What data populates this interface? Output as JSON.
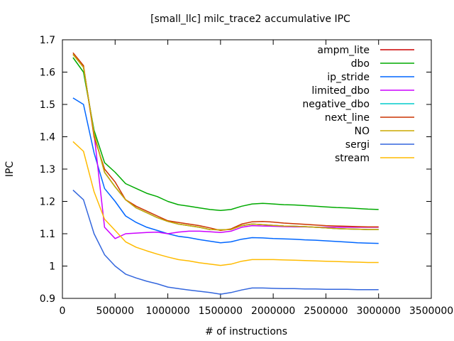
{
  "chart_data": {
    "type": "line",
    "title": "[small_llc] milc_trace2 accumulative IPC",
    "xlabel": "# of instructions",
    "ylabel": "IPC",
    "xlim": [
      0,
      3500000
    ],
    "ylim": [
      0.9,
      1.7
    ],
    "xticks": [
      0,
      500000,
      1000000,
      1500000,
      2000000,
      2500000,
      3000000,
      3500000
    ],
    "xtick_labels": [
      "0",
      "500000",
      "1000000",
      "1500000",
      "2000000",
      "2500000",
      "3000000",
      "3500000"
    ],
    "yticks": [
      0.9,
      1,
      1.1,
      1.2,
      1.3,
      1.4,
      1.5,
      1.6,
      1.7
    ],
    "ytick_labels": [
      "0.9",
      "1",
      "1.1",
      "1.2",
      "1.3",
      "1.4",
      "1.5",
      "1.6",
      "1.7"
    ],
    "grid": false,
    "legend_position": "top-right",
    "x": [
      100000,
      200000,
      300000,
      400000,
      500000,
      600000,
      700000,
      800000,
      900000,
      1000000,
      1100000,
      1200000,
      1300000,
      1400000,
      1500000,
      1600000,
      1700000,
      1800000,
      1900000,
      2000000,
      2100000,
      2200000,
      2300000,
      2400000,
      2500000,
      2600000,
      2700000,
      2800000,
      2900000,
      3000000
    ],
    "series": [
      {
        "name": "ampm_lite",
        "color": "#cc0000",
        "values": [
          1.655,
          1.615,
          1.41,
          1.29,
          1.245,
          1.205,
          1.18,
          1.165,
          1.15,
          1.138,
          1.13,
          1.125,
          1.12,
          1.113,
          1.112,
          1.113,
          1.125,
          1.13,
          1.128,
          1.126,
          1.124,
          1.123,
          1.122,
          1.12,
          1.118,
          1.116,
          1.115,
          1.114,
          1.113,
          1.113
        ]
      },
      {
        "name": "dbo",
        "color": "#00aa00",
        "values": [
          1.645,
          1.6,
          1.42,
          1.32,
          1.29,
          1.255,
          1.24,
          1.225,
          1.215,
          1.2,
          1.19,
          1.185,
          1.18,
          1.175,
          1.172,
          1.175,
          1.185,
          1.192,
          1.194,
          1.192,
          1.19,
          1.189,
          1.187,
          1.185,
          1.183,
          1.181,
          1.18,
          1.178,
          1.176,
          1.175
        ]
      },
      {
        "name": "ip_stride",
        "color": "#0066ff",
        "values": [
          1.52,
          1.5,
          1.35,
          1.24,
          1.2,
          1.155,
          1.135,
          1.12,
          1.11,
          1.1,
          1.092,
          1.088,
          1.082,
          1.077,
          1.072,
          1.075,
          1.083,
          1.088,
          1.087,
          1.085,
          1.084,
          1.083,
          1.081,
          1.08,
          1.078,
          1.076,
          1.074,
          1.072,
          1.071,
          1.07
        ]
      },
      {
        "name": "limited_dbo",
        "color": "#cc00ff",
        "values": [
          1.655,
          1.615,
          1.41,
          1.12,
          1.085,
          1.1,
          1.102,
          1.104,
          1.105,
          1.1,
          1.105,
          1.108,
          1.108,
          1.106,
          1.104,
          1.108,
          1.12,
          1.125,
          1.124,
          1.123,
          1.122,
          1.121,
          1.121,
          1.12,
          1.12,
          1.12,
          1.12,
          1.12,
          1.12,
          1.12
        ]
      },
      {
        "name": "negative_dbo",
        "color": "#00cccc",
        "values": [
          1.655,
          1.615,
          1.41,
          1.29,
          1.245,
          1.205,
          1.18,
          1.165,
          1.15,
          1.138,
          1.13,
          1.125,
          1.12,
          1.113,
          1.112,
          1.113,
          1.125,
          1.13,
          1.128,
          1.126,
          1.124,
          1.123,
          1.122,
          1.12,
          1.118,
          1.116,
          1.115,
          1.114,
          1.113,
          1.113
        ]
      },
      {
        "name": "next_line",
        "color": "#cc3300",
        "values": [
          1.66,
          1.62,
          1.4,
          1.3,
          1.26,
          1.205,
          1.185,
          1.17,
          1.155,
          1.14,
          1.135,
          1.13,
          1.125,
          1.118,
          1.11,
          1.115,
          1.13,
          1.137,
          1.138,
          1.136,
          1.133,
          1.131,
          1.129,
          1.127,
          1.125,
          1.124,
          1.123,
          1.122,
          1.121,
          1.121
        ]
      },
      {
        "name": "NO",
        "color": "#ccaa00",
        "values": [
          1.655,
          1.615,
          1.41,
          1.29,
          1.245,
          1.205,
          1.18,
          1.165,
          1.15,
          1.138,
          1.13,
          1.125,
          1.12,
          1.113,
          1.112,
          1.113,
          1.125,
          1.13,
          1.128,
          1.126,
          1.124,
          1.123,
          1.122,
          1.12,
          1.118,
          1.116,
          1.115,
          1.114,
          1.113,
          1.113
        ]
      },
      {
        "name": "sergi",
        "color": "#3366dd",
        "values": [
          1.235,
          1.205,
          1.1,
          1.035,
          1.0,
          0.975,
          0.963,
          0.953,
          0.945,
          0.935,
          0.93,
          0.926,
          0.922,
          0.918,
          0.913,
          0.918,
          0.926,
          0.932,
          0.932,
          0.931,
          0.93,
          0.93,
          0.929,
          0.929,
          0.928,
          0.928,
          0.928,
          0.927,
          0.927,
          0.927
        ]
      },
      {
        "name": "stream",
        "color": "#ffbb00",
        "values": [
          1.385,
          1.355,
          1.23,
          1.145,
          1.11,
          1.075,
          1.058,
          1.047,
          1.037,
          1.028,
          1.02,
          1.016,
          1.01,
          1.006,
          1.002,
          1.006,
          1.015,
          1.02,
          1.02,
          1.02,
          1.019,
          1.018,
          1.017,
          1.016,
          1.015,
          1.014,
          1.013,
          1.012,
          1.011,
          1.011
        ]
      }
    ]
  }
}
